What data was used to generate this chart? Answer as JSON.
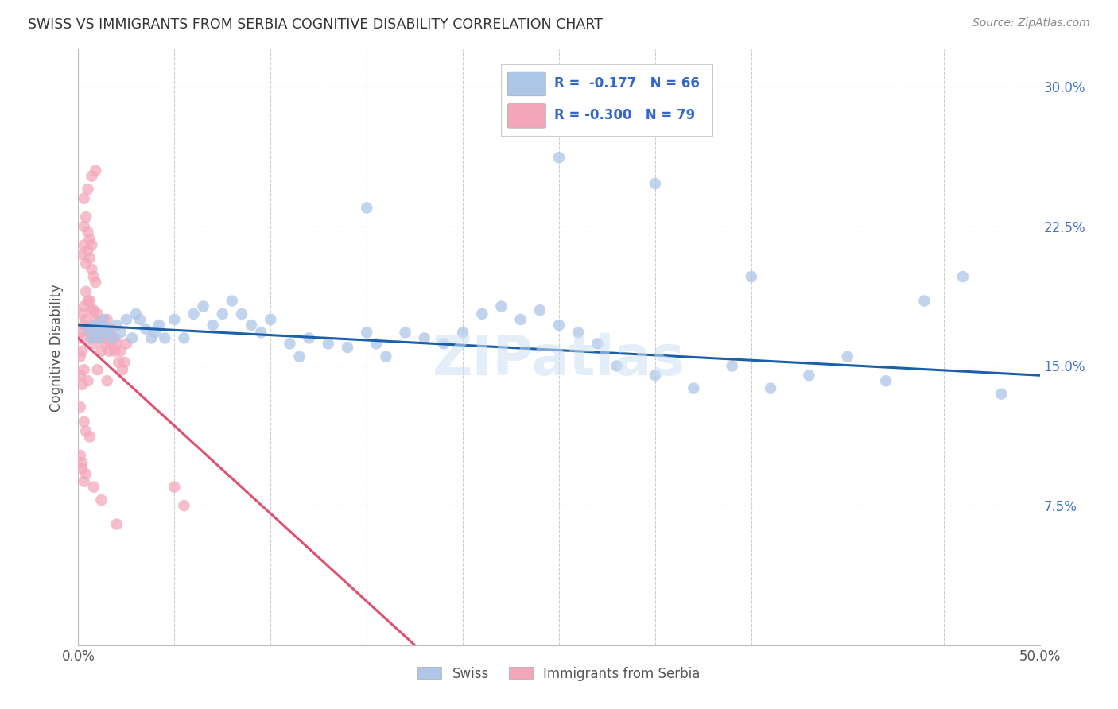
{
  "title": "SWISS VS IMMIGRANTS FROM SERBIA COGNITIVE DISABILITY CORRELATION CHART",
  "source": "Source: ZipAtlas.com",
  "ylabel": "Cognitive Disability",
  "xlim": [
    0.0,
    0.5
  ],
  "ylim": [
    0.0,
    0.32
  ],
  "swiss_color": "#aec6e8",
  "serbia_color": "#f4a7b9",
  "swiss_line_color": "#1a5fa8",
  "serbia_line_color": "#e05070",
  "watermark": "ZIPatlas",
  "swiss_x": [
    0.005,
    0.007,
    0.008,
    0.01,
    0.011,
    0.012,
    0.013,
    0.015,
    0.016,
    0.018,
    0.02,
    0.022,
    0.025,
    0.028,
    0.03,
    0.032,
    0.035,
    0.038,
    0.04,
    0.042,
    0.045,
    0.05,
    0.055,
    0.06,
    0.065,
    0.07,
    0.075,
    0.08,
    0.085,
    0.09,
    0.095,
    0.1,
    0.11,
    0.115,
    0.12,
    0.13,
    0.14,
    0.15,
    0.155,
    0.16,
    0.17,
    0.18,
    0.19,
    0.2,
    0.21,
    0.22,
    0.23,
    0.24,
    0.25,
    0.26,
    0.27,
    0.28,
    0.3,
    0.32,
    0.34,
    0.36,
    0.38,
    0.4,
    0.42,
    0.44,
    0.46,
    0.48,
    0.25,
    0.3,
    0.35,
    0.15
  ],
  "swiss_y": [
    0.17,
    0.165,
    0.172,
    0.168,
    0.165,
    0.172,
    0.175,
    0.168,
    0.17,
    0.165,
    0.172,
    0.168,
    0.175,
    0.165,
    0.178,
    0.175,
    0.17,
    0.165,
    0.168,
    0.172,
    0.165,
    0.175,
    0.165,
    0.178,
    0.182,
    0.172,
    0.178,
    0.185,
    0.178,
    0.172,
    0.168,
    0.175,
    0.162,
    0.155,
    0.165,
    0.162,
    0.16,
    0.168,
    0.162,
    0.155,
    0.168,
    0.165,
    0.162,
    0.168,
    0.178,
    0.182,
    0.175,
    0.18,
    0.172,
    0.168,
    0.162,
    0.15,
    0.145,
    0.138,
    0.15,
    0.138,
    0.145,
    0.155,
    0.142,
    0.185,
    0.198,
    0.135,
    0.262,
    0.248,
    0.198,
    0.235
  ],
  "serbia_x": [
    0.001,
    0.002,
    0.003,
    0.004,
    0.005,
    0.006,
    0.007,
    0.008,
    0.009,
    0.01,
    0.011,
    0.012,
    0.013,
    0.014,
    0.015,
    0.016,
    0.017,
    0.018,
    0.019,
    0.02,
    0.021,
    0.022,
    0.023,
    0.024,
    0.025,
    0.002,
    0.003,
    0.005,
    0.007,
    0.009,
    0.011,
    0.013,
    0.015,
    0.017,
    0.019,
    0.004,
    0.006,
    0.008,
    0.01,
    0.012,
    0.002,
    0.003,
    0.004,
    0.005,
    0.006,
    0.007,
    0.008,
    0.009,
    0.003,
    0.005,
    0.007,
    0.009,
    0.001,
    0.002,
    0.003,
    0.005,
    0.001,
    0.002,
    0.01,
    0.015,
    0.001,
    0.003,
    0.004,
    0.006,
    0.002,
    0.004,
    0.008,
    0.012,
    0.05,
    0.055,
    0.003,
    0.004,
    0.005,
    0.006,
    0.007,
    0.001,
    0.002,
    0.003,
    0.02
  ],
  "serbia_y": [
    0.168,
    0.165,
    0.172,
    0.175,
    0.17,
    0.168,
    0.165,
    0.162,
    0.165,
    0.168,
    0.17,
    0.158,
    0.165,
    0.162,
    0.168,
    0.158,
    0.162,
    0.165,
    0.158,
    0.162,
    0.152,
    0.158,
    0.148,
    0.152,
    0.162,
    0.178,
    0.182,
    0.185,
    0.18,
    0.175,
    0.172,
    0.168,
    0.175,
    0.17,
    0.165,
    0.19,
    0.185,
    0.18,
    0.178,
    0.172,
    0.21,
    0.215,
    0.205,
    0.212,
    0.208,
    0.202,
    0.198,
    0.195,
    0.24,
    0.245,
    0.252,
    0.255,
    0.145,
    0.14,
    0.148,
    0.142,
    0.155,
    0.158,
    0.148,
    0.142,
    0.128,
    0.12,
    0.115,
    0.112,
    0.098,
    0.092,
    0.085,
    0.078,
    0.085,
    0.075,
    0.225,
    0.23,
    0.222,
    0.218,
    0.215,
    0.102,
    0.095,
    0.088,
    0.065
  ]
}
